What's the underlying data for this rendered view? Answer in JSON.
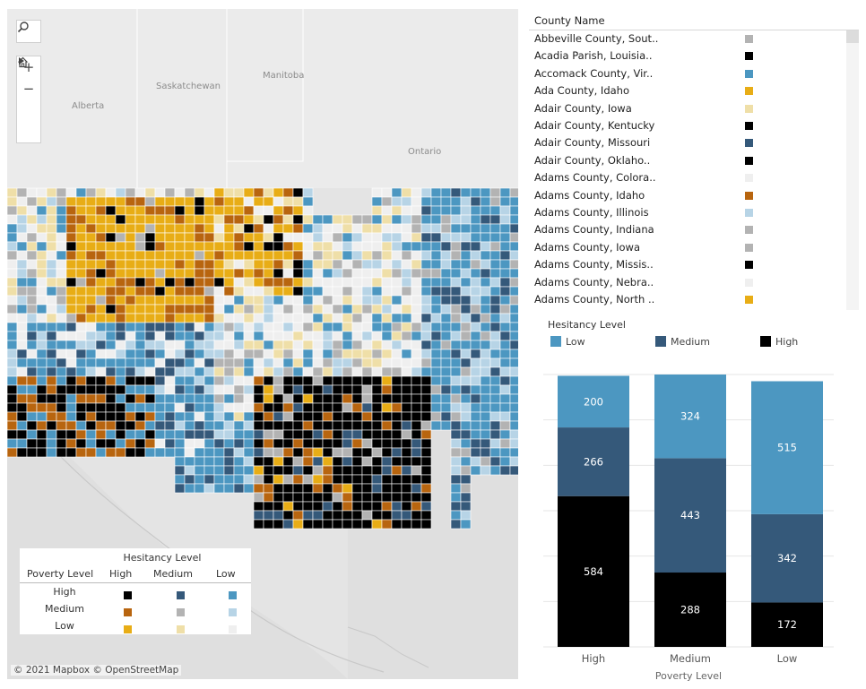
{
  "map": {
    "place_labels": [
      {
        "id": "saskatchewan",
        "text": "Saskatchewan"
      },
      {
        "id": "manitoba",
        "text": "Manitoba"
      },
      {
        "id": "alberta",
        "text": "Alberta"
      },
      {
        "id": "ontario",
        "text": "Ontario"
      }
    ],
    "attribution": "© 2021 Mapbox  © OpenStreetMap",
    "controls": {
      "search": "search-icon",
      "zoom_in": "+",
      "zoom_out": "−",
      "home": "home-icon",
      "pan": "play-icon"
    }
  },
  "map_legend": {
    "title": "Hesitancy Level",
    "row_header": "Poverty Level",
    "columns": [
      "High",
      "Medium",
      "Low"
    ],
    "rows": [
      {
        "label": "High",
        "colors": [
          "#000000",
          "#35597a",
          "#4c97c1"
        ]
      },
      {
        "label": "Medium",
        "colors": [
          "#b8650f",
          "#b3b3b3",
          "#b7d4e6"
        ]
      },
      {
        "label": "Low",
        "colors": [
          "#e8ad16",
          "#efdfa8",
          "#efefef"
        ]
      }
    ]
  },
  "county_list": {
    "header": "County Name",
    "rows": [
      {
        "name": "Abbeville County, Sout..",
        "color": "#b3b3b3"
      },
      {
        "name": "Acadia Parish, Louisia..",
        "color": "#000000"
      },
      {
        "name": "Accomack County, Vir..",
        "color": "#4c97c1"
      },
      {
        "name": "Ada County, Idaho",
        "color": "#e8ad16"
      },
      {
        "name": "Adair County, Iowa",
        "color": "#efdfa8"
      },
      {
        "name": "Adair County, Kentucky",
        "color": "#000000"
      },
      {
        "name": "Adair County, Missouri",
        "color": "#35597a"
      },
      {
        "name": "Adair County, Oklaho..",
        "color": "#000000"
      },
      {
        "name": "Adams County, Colora..",
        "color": "#efefef"
      },
      {
        "name": "Adams County, Idaho",
        "color": "#b8650f"
      },
      {
        "name": "Adams County, Illinois",
        "color": "#b7d4e6"
      },
      {
        "name": "Adams County, Indiana",
        "color": "#b3b3b3"
      },
      {
        "name": "Adams County, Iowa",
        "color": "#b3b3b3"
      },
      {
        "name": "Adams County, Missis..",
        "color": "#000000"
      },
      {
        "name": "Adams County, Nebra..",
        "color": "#efefef"
      },
      {
        "name": "Adams County, North ..",
        "color": "#e8ad16"
      }
    ]
  },
  "hesitancy_legend": {
    "title": "Hesitancy Level",
    "items": [
      {
        "label": "Low",
        "color": "#4c97c1"
      },
      {
        "label": "Medium",
        "color": "#35597a"
      },
      {
        "label": "High",
        "color": "#000000"
      }
    ]
  },
  "chart_data": {
    "type": "bar",
    "stacked": true,
    "categories": [
      "High",
      "Medium",
      "Low"
    ],
    "xlabel": "Poverty Level",
    "ylabel": "",
    "grid": true,
    "series": [
      {
        "name": "High",
        "color": "#000000",
        "values": [
          584,
          288,
          172
        ]
      },
      {
        "name": "Medium",
        "color": "#35597a",
        "values": [
          266,
          443,
          342
        ]
      },
      {
        "name": "Low",
        "color": "#4c97c1",
        "values": [
          200,
          324,
          515
        ]
      }
    ],
    "ylim": [
      0,
      1055
    ]
  }
}
